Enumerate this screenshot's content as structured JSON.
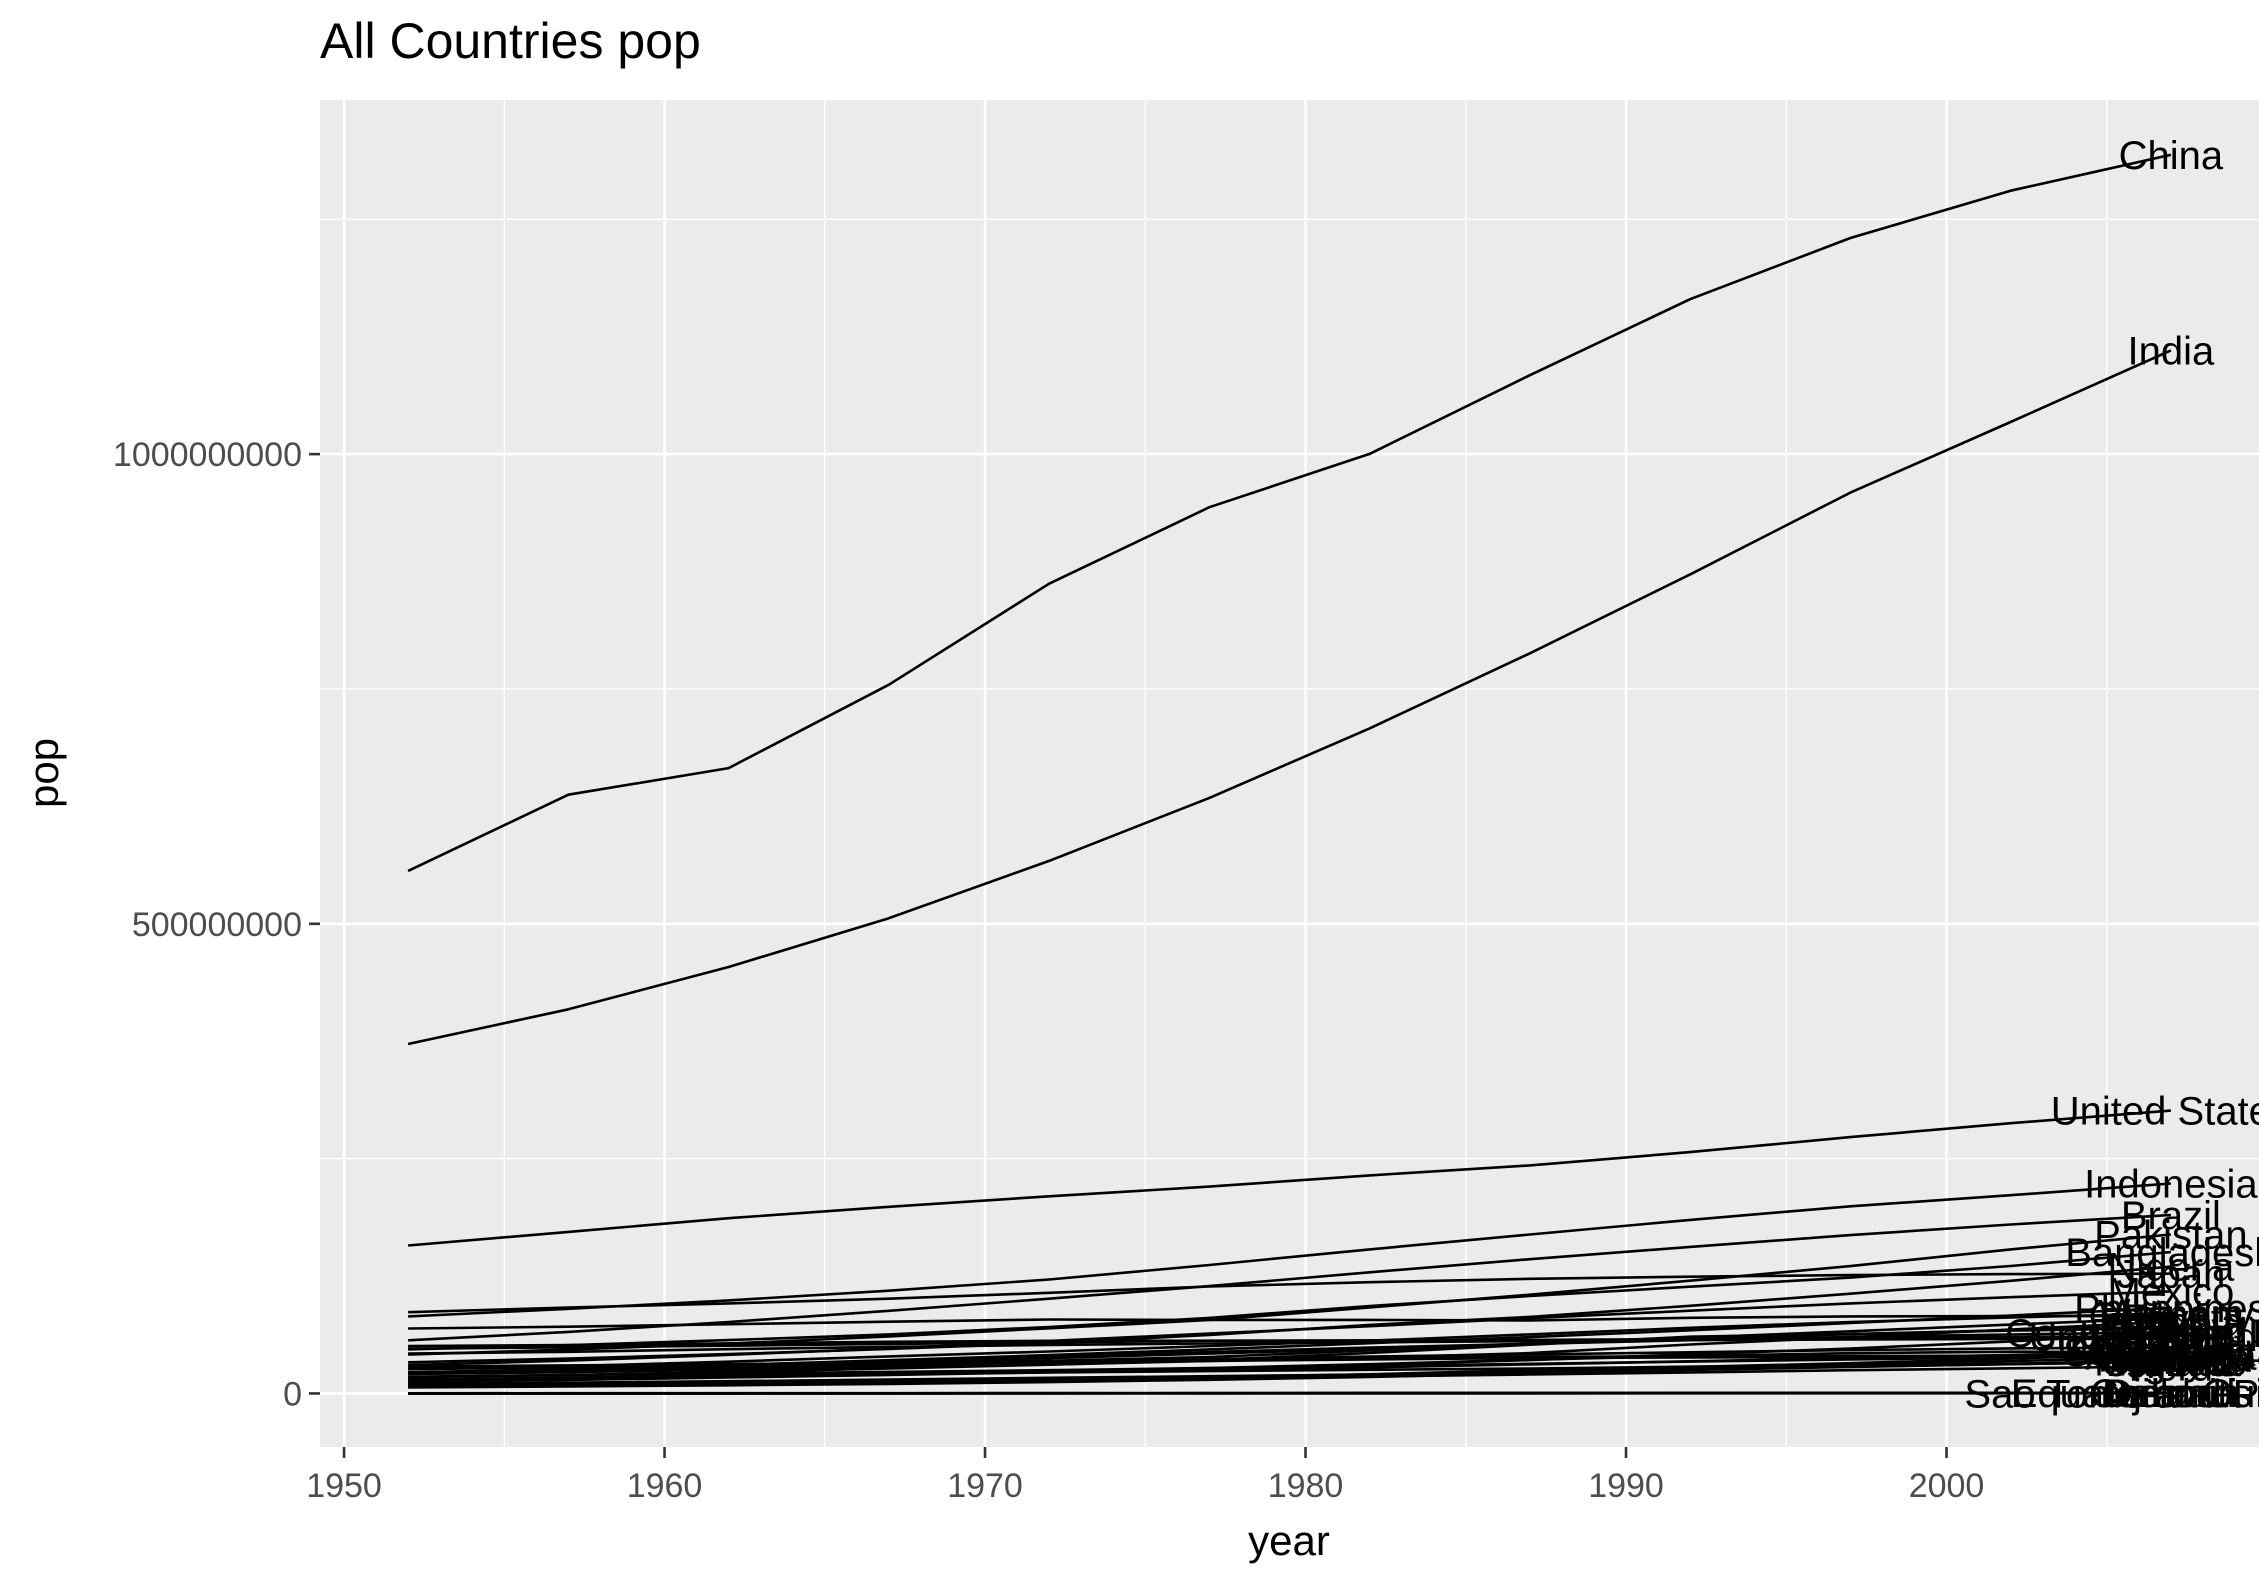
{
  "chart_data": {
    "type": "line",
    "title": "All Countries pop",
    "xlabel": "year",
    "ylabel": "pop",
    "xlim": [
      1949.25,
      2009.75
    ],
    "ylim": [
      -57000000,
      1377000000
    ],
    "x_ticks": [
      1950,
      1960,
      1970,
      1980,
      1990,
      2000
    ],
    "x_tick_labels": [
      "1950",
      "1960",
      "1970",
      "1980",
      "1990",
      "2000"
    ],
    "y_ticks": [
      0,
      500000000,
      1000000000
    ],
    "y_tick_labels": [
      "0",
      "500000000",
      "1000000000"
    ],
    "grid": true,
    "legend": "none",
    "x": [
      1952,
      1957,
      1962,
      1967,
      1972,
      1977,
      1982,
      1987,
      1992,
      1997,
      2002,
      2007
    ],
    "series": [
      {
        "name": "China",
        "values": [
          556263527,
          637408000,
          665770000,
          754550000,
          862030000,
          943455000,
          1000281000,
          1084035000,
          1164970000,
          1230075000,
          1280400000,
          1318683096
        ]
      },
      {
        "name": "India",
        "values": [
          372000000,
          409000000,
          454000000,
          506000000,
          567000000,
          634000000,
          708000000,
          788000000,
          872000000,
          959000000,
          1034172547,
          1110396331
        ]
      },
      {
        "name": "United States",
        "values": [
          157553000,
          171984000,
          186538000,
          198712000,
          209896000,
          220239000,
          232187835,
          242803533,
          256894189,
          272911760,
          287675526,
          301139947
        ]
      },
      {
        "name": "Indonesia",
        "values": [
          82052000,
          90124000,
          99028000,
          109343000,
          121282000,
          136725000,
          153343000,
          169276000,
          184816000,
          199278000,
          211060000,
          223547000
        ]
      },
      {
        "name": "Brazil",
        "values": [
          56602560,
          65551171,
          76039390,
          88049823,
          100840058,
          114313951,
          128962939,
          142938076,
          155975974,
          168546719,
          179914212,
          190010647
        ]
      },
      {
        "name": "Pakistan",
        "values": [
          41346560,
          46679944,
          53100671,
          60641899,
          69325921,
          78152686,
          91462088,
          105186881,
          120065004,
          135564834,
          153403524,
          169270617
        ]
      },
      {
        "name": "Bangladesh",
        "values": [
          46886859,
          51365468,
          56839289,
          62821884,
          70759295,
          80428306,
          93074406,
          103764241,
          113704579,
          123315288,
          135656790,
          150448339
        ]
      },
      {
        "name": "Nigeria",
        "values": [
          33119096,
          37173340,
          41871351,
          47287752,
          53740085,
          62209173,
          73039376,
          81551520,
          93364244,
          106207839,
          119901274,
          135031164
        ]
      },
      {
        "name": "Japan",
        "values": [
          86459025,
          91563009,
          95831757,
          100825279,
          107188273,
          113872473,
          118454974,
          122091325,
          124329269,
          125956499,
          127065841,
          127467972
        ]
      },
      {
        "name": "Mexico",
        "values": [
          30144317,
          35015548,
          41121485,
          47995559,
          55984294,
          63759976,
          71640904,
          80122492,
          88111030,
          95895146,
          102479927,
          108700891
        ]
      },
      {
        "name": "Philippines",
        "values": [
          22438691,
          26072194,
          30325264,
          35356600,
          40850141,
          46850962,
          53456774,
          60017788,
          67185766,
          75012988,
          82995088,
          91077287
        ]
      },
      {
        "name": "Vietnam",
        "values": [
          26246839,
          28998543,
          33796140,
          39463910,
          44655014,
          50533506,
          56142181,
          62826491,
          69940728,
          76048996,
          80908147,
          85262356
        ]
      },
      {
        "name": "Germany",
        "values": [
          69145952,
          71019069,
          73739117,
          76368453,
          78717088,
          78160773,
          78335266,
          77718298,
          80597764,
          82011073,
          82350671,
          82400996
        ]
      },
      {
        "name": "Egypt",
        "values": [
          22223309,
          25009741,
          28173309,
          31681188,
          34807417,
          38783863,
          45681811,
          52799062,
          59402198,
          66134291,
          73312559,
          80264543
        ]
      },
      {
        "name": "Ethiopia",
        "values": [
          20860941,
          22815614,
          25145372,
          27860297,
          30770372,
          34617799,
          38111756,
          42999530,
          52088559,
          59861301,
          67946797,
          76511887
        ]
      },
      {
        "name": "Turkey",
        "values": [
          22235677,
          25670939,
          29788695,
          33411317,
          37492953,
          42404033,
          47328791,
          52881328,
          58179144,
          63047647,
          67308928,
          71158647
        ]
      },
      {
        "name": "Iran",
        "values": [
          17272000,
          19792000,
          22874000,
          26538000,
          30614000,
          35480679,
          43072751,
          51889696,
          60397973,
          63327987,
          66907826,
          69453570
        ]
      },
      {
        "name": "Thailand",
        "values": [
          21289402,
          25041917,
          29263397,
          34024249,
          39276153,
          44148285,
          48827160,
          52910342,
          56667095,
          60216677,
          62806748,
          65068149
        ]
      },
      {
        "name": "Congo, Dem. Rep.",
        "values": [
          14100005,
          15577932,
          17486434,
          19941073,
          23007669,
          26480870,
          30646495,
          35481645,
          41672143,
          47798986,
          55379852,
          64606759
        ]
      },
      {
        "name": "France",
        "values": [
          42459667,
          44310863,
          47124000,
          49569000,
          51732000,
          53165019,
          54433565,
          55630100,
          57374179,
          58623428,
          59925035,
          61083916
        ]
      },
      {
        "name": "United Kingdom",
        "values": [
          50430000,
          51430000,
          53292000,
          54959000,
          56079000,
          56179000,
          56339704,
          56981620,
          57866349,
          58808266,
          59912431,
          60776238
        ]
      },
      {
        "name": "Italy",
        "values": [
          47666000,
          49182000,
          50843200,
          52667100,
          54365564,
          56059245,
          56535636,
          56729703,
          56840847,
          57479469,
          57926999,
          58147733
        ]
      },
      {
        "name": "Korea, Rep.",
        "values": [
          20947571,
          22611552,
          26420307,
          30131000,
          33505000,
          36436000,
          39326000,
          41622000,
          43805450,
          46173816,
          47969150,
          49044790
        ]
      },
      {
        "name": "South Africa",
        "values": [
          14264935,
          16151549,
          18356657,
          20997321,
          23935810,
          27129932,
          31140029,
          35933379,
          39964159,
          42835005,
          44433622,
          43997828
        ]
      },
      {
        "name": "Spain",
        "values": [
          28549870,
          29841614,
          31158061,
          32850275,
          34513161,
          36439000,
          37983310,
          38880702,
          39549438,
          39855442,
          40152517,
          40448191
        ]
      },
      {
        "name": "Colombia",
        "values": [
          12350771,
          14485993,
          17009885,
          19764027,
          22542890,
          25094412,
          27764644,
          30964245,
          34202721,
          37657830,
          41008227,
          44227550
        ]
      },
      {
        "name": "Argentina",
        "values": [
          17876956,
          19610538,
          21283783,
          22934225,
          24779799,
          26983828,
          29341374,
          31620918,
          33958947,
          36203463,
          38331121,
          40301927
        ]
      },
      {
        "name": "Poland",
        "values": [
          25730551,
          28235346,
          30329617,
          31785378,
          33039545,
          34621254,
          36227381,
          37740710,
          38370697,
          38654957,
          38625976,
          38518241
        ]
      },
      {
        "name": "Canada",
        "values": [
          14785584,
          17010154,
          18985849,
          20819767,
          22284500,
          23796400,
          25201900,
          26549700,
          28523502,
          30305843,
          31902268,
          33390141
        ]
      },
      {
        "name": "Sudan",
        "values": [
          8504667,
          9753392,
          11183227,
          12716129,
          14597019,
          17104986,
          20367053,
          24725960,
          28227588,
          32160729,
          37090298,
          42292929
        ]
      },
      {
        "name": "Kenya",
        "values": [
          6464046,
          7454779,
          8678557,
          10191512,
          12044785,
          14500404,
          17661452,
          21198082,
          25020539,
          28263827,
          31386842,
          35610177
        ]
      },
      {
        "name": "Tanzania",
        "values": [
          8322925,
          9452826,
          10863958,
          12607312,
          14706593,
          17129565,
          19844382,
          23040630,
          26605473,
          30686889,
          34593779,
          38139640
        ]
      },
      {
        "name": "Morocco",
        "values": [
          9939217,
          11406350,
          13056604,
          14770296,
          16660670,
          18396941,
          20198730,
          22987397,
          25798239,
          28529501,
          31167783,
          33757175
        ]
      },
      {
        "name": "Algeria",
        "values": [
          9279525,
          10270856,
          11000948,
          12760499,
          14760787,
          17152804,
          20033753,
          23254956,
          26298373,
          29072015,
          31287142,
          33333216
        ]
      },
      {
        "name": "Peru",
        "values": [
          8025700,
          9146100,
          10516500,
          12132200,
          13954700,
          15990099,
          18125129,
          20195924,
          22430449,
          24748122,
          26769436,
          28674757
        ]
      },
      {
        "name": "Iceland",
        "values": [
          147962,
          165110,
          182053,
          198676,
          209275,
          221823,
          233997,
          244676,
          259012,
          271192,
          288030,
          301931
        ]
      },
      {
        "name": "Djibouti",
        "values": [
          63149,
          71851,
          89898,
          127617,
          178848,
          228694,
          305991,
          311025,
          384156,
          417908,
          447416,
          496374
        ]
      },
      {
        "name": "Bahrain",
        "values": [
          120447,
          138655,
          171863,
          202182,
          230800,
          297410,
          377967,
          454612,
          529491,
          598561,
          656397,
          708573
        ]
      },
      {
        "name": "Sao Tome and Principe",
        "values": [
          60011,
          61325,
          65345,
          70787,
          76595,
          86796,
          98593,
          110812,
          125911,
          145608,
          170372,
          199579
        ]
      },
      {
        "name": "Equatorial Guinea",
        "values": [
          216964,
          232922,
          249220,
          259864,
          277603,
          192675,
          285483,
          341244,
          387838,
          439971,
          495627,
          551201
        ]
      },
      {
        "name": "Comoros",
        "values": [
          153936,
          170928,
          191689,
          217378,
          250027,
          304739,
          348643,
          395114,
          454429,
          527982,
          614382,
          710960
        ]
      }
    ]
  }
}
